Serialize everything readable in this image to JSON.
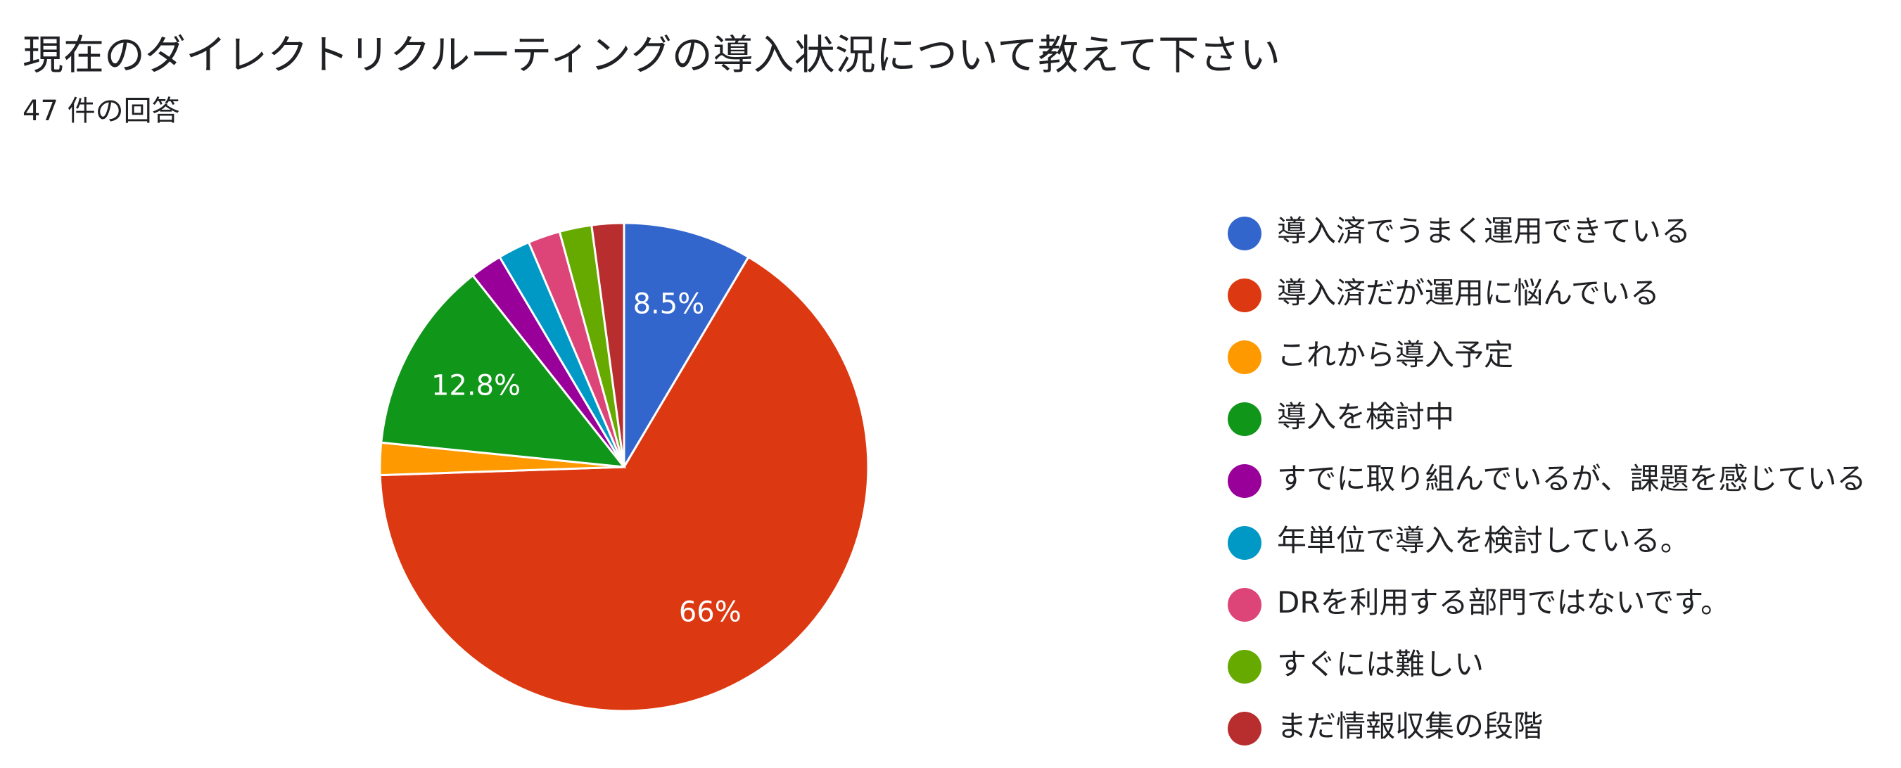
{
  "header": {
    "title": "現在のダイレクトリクルーティングの導入状況について教えて下さい",
    "subtitle": "47 件の回答"
  },
  "chart_data": {
    "type": "pie",
    "title": "現在のダイレクトリクルーティングの導入状況について教えて下さい",
    "total_responses": 47,
    "start_angle_deg": 90,
    "direction": "clockwise",
    "legend_position": "right",
    "series": [
      {
        "name": "導入済でうまく運用できている",
        "count": 4,
        "percent": 8.5,
        "color": "#3366cc",
        "label": "8.5%"
      },
      {
        "name": "導入済だが運用に悩んでいる",
        "count": 31,
        "percent": 66.0,
        "color": "#dc3912",
        "label": "66%"
      },
      {
        "name": "これから導入予定",
        "count": 1,
        "percent": 2.1,
        "color": "#ff9900",
        "label": ""
      },
      {
        "name": "導入を検討中",
        "count": 6,
        "percent": 12.8,
        "color": "#109618",
        "label": "12.8%"
      },
      {
        "name": "すでに取り組んでいるが、課題を感じている",
        "count": 1,
        "percent": 2.1,
        "color": "#990099",
        "label": ""
      },
      {
        "name": "年単位で導入を検討している。",
        "count": 1,
        "percent": 2.1,
        "color": "#0099c6",
        "label": ""
      },
      {
        "name": "DRを利用する部門ではないです。",
        "count": 1,
        "percent": 2.1,
        "color": "#dd4477",
        "label": ""
      },
      {
        "name": "すぐには難しい",
        "count": 1,
        "percent": 2.1,
        "color": "#66aa00",
        "label": ""
      },
      {
        "name": "まだ情報収集の段階",
        "count": 1,
        "percent": 2.1,
        "color": "#b82e2e",
        "label": ""
      }
    ]
  }
}
